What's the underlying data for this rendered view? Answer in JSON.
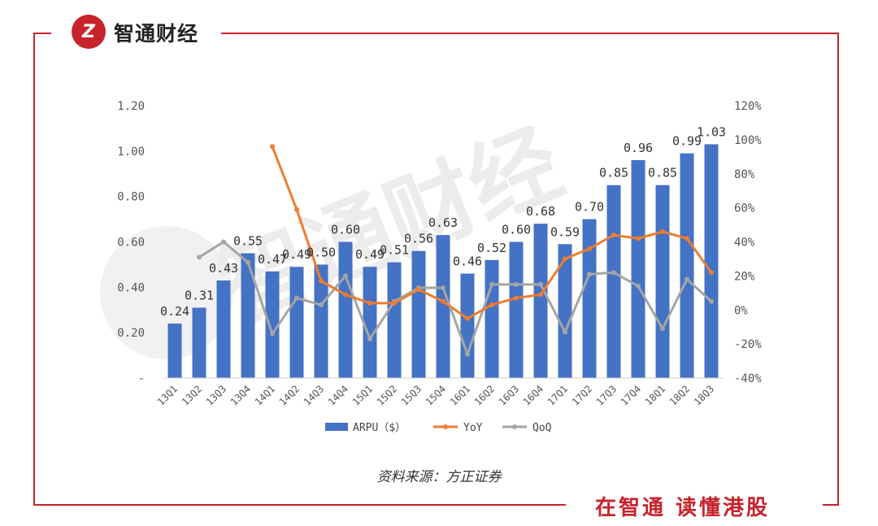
{
  "header": {
    "brand": "智通财经",
    "logo_icon": "zhitong-logo-icon"
  },
  "footer": {
    "source": "资料来源：方正证券",
    "slogan": "在智通 读懂港股"
  },
  "colors": {
    "frame": "#c8232c",
    "bar": "#4472c4",
    "yoy": "#ed7d31",
    "qoq": "#a5a5a5"
  },
  "chart_data": {
    "type": "bar",
    "title": "",
    "categories": [
      "13Q1",
      "13Q2",
      "13Q3",
      "13Q4",
      "14Q1",
      "14Q2",
      "14Q3",
      "14Q4",
      "15Q1",
      "15Q2",
      "15Q3",
      "15Q4",
      "16Q1",
      "16Q2",
      "16Q3",
      "16Q4",
      "17Q1",
      "17Q2",
      "17Q3",
      "17Q4",
      "18Q1",
      "18Q2",
      "18Q3"
    ],
    "series": [
      {
        "name": "ARPU（$）",
        "type": "bar",
        "axis": "left",
        "values": [
          0.24,
          0.31,
          0.43,
          0.55,
          0.47,
          0.49,
          0.5,
          0.6,
          0.49,
          0.51,
          0.56,
          0.63,
          0.46,
          0.52,
          0.6,
          0.68,
          0.59,
          0.7,
          0.85,
          0.96,
          0.85,
          0.99,
          1.03
        ],
        "labels": [
          "0.24",
          "0.31",
          "0.43",
          "0.55",
          "0.47",
          "0.49",
          "0.50",
          "0.60",
          "0.49",
          "0.51",
          "0.56",
          "0.63",
          "0.46",
          "0.52",
          "0.60",
          "0.68",
          "0.59",
          "0.70",
          "0.85",
          "0.96",
          "0.85",
          "0.99",
          "1.03"
        ]
      },
      {
        "name": "YoY",
        "type": "line",
        "axis": "right",
        "values": [
          null,
          null,
          null,
          null,
          96,
          59,
          17,
          9,
          4,
          4,
          12,
          5,
          -5,
          3,
          7,
          9,
          30,
          36,
          44,
          42,
          46,
          42,
          22
        ]
      },
      {
        "name": "QoQ",
        "type": "line",
        "axis": "right",
        "values": [
          null,
          31,
          40,
          28,
          -14,
          7,
          3,
          20,
          -17,
          5,
          13,
          13,
          -26,
          15,
          15,
          15,
          -13,
          21,
          22,
          14,
          -11,
          18,
          5
        ]
      }
    ],
    "left_axis": {
      "ylim": [
        0,
        1.2
      ],
      "ticks": [
        "-",
        "0.20",
        "0.40",
        "0.60",
        "0.80",
        "1.00",
        "1.20"
      ]
    },
    "right_axis": {
      "ylim": [
        -40,
        120
      ],
      "ticks": [
        "-40%",
        "-20%",
        "0%",
        "20%",
        "40%",
        "60%",
        "80%",
        "100%",
        "120%"
      ]
    },
    "legend": {
      "position": "bottom",
      "entries": [
        "ARPU（$）",
        "YoY",
        "QoQ"
      ]
    },
    "watermark": "智通财经"
  }
}
